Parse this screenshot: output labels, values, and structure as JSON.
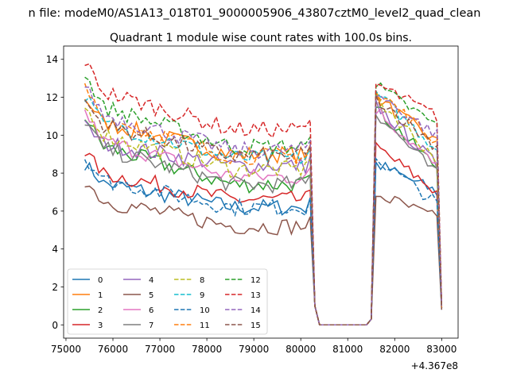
{
  "figure": {
    "suptitle": "n file: modeM0/AS1A13_018T01_9000005906_43807cztM0_level2_quad_clean",
    "title": "Quadrant 1 module wise count rates with 100.0s bins.",
    "offset_text": "+4.367e8"
  },
  "chart_data": {
    "type": "line",
    "title": "Quadrant 1 module wise count rates with 100.0s bins.",
    "xlabel": "",
    "ylabel": "",
    "x_offset": 436700000,
    "xlim": [
      74950,
      83350
    ],
    "ylim": [
      -0.7,
      14.7
    ],
    "xticks": [
      75000,
      76000,
      77000,
      78000,
      79000,
      80000,
      81000,
      82000,
      83000
    ],
    "yticks": [
      0,
      2,
      4,
      6,
      8,
      10,
      12,
      14
    ],
    "grid": false,
    "legend_position": "lower-left",
    "legend_columns": 4,
    "x_start": 75400,
    "x_step": 100,
    "gap": {
      "from": 80400,
      "to": 81400,
      "value": 0
    },
    "series": [
      {
        "name": "0",
        "color": "#1f77b4",
        "dash": "solid",
        "first": 8.5,
        "plateau": 6.2,
        "second_start": 8.5,
        "second_end": 7.0,
        "end_value": 0.8
      },
      {
        "name": "1",
        "color": "#ff7f0e",
        "dash": "solid",
        "first": 12.0,
        "plateau": 9.0,
        "second_start": 12.0,
        "second_end": 9.6,
        "end_value": 0.9
      },
      {
        "name": "2",
        "color": "#2ca02c",
        "dash": "solid",
        "first": 11.0,
        "plateau": 7.4,
        "second_start": 11.4,
        "second_end": 8.3,
        "end_value": 0.9
      },
      {
        "name": "3",
        "color": "#d62728",
        "dash": "solid",
        "first": 9.1,
        "plateau": 6.6,
        "second_start": 9.4,
        "second_end": 7.0,
        "end_value": 0.9
      },
      {
        "name": "4",
        "color": "#9467bd",
        "dash": "solid",
        "first": 10.5,
        "plateau": 8.4,
        "second_start": 11.6,
        "second_end": 8.4,
        "end_value": 0.9
      },
      {
        "name": "5",
        "color": "#8c564b",
        "dash": "solid",
        "first": 7.6,
        "plateau": 5.2,
        "second_start": 6.9,
        "second_end": 5.6,
        "end_value": 0.8
      },
      {
        "name": "6",
        "color": "#e377c2",
        "dash": "solid",
        "first": 11.2,
        "plateau": 7.8,
        "second_start": 11.4,
        "second_end": 8.3,
        "end_value": 0.9
      },
      {
        "name": "7",
        "color": "#7f7f7f",
        "dash": "solid",
        "first": 10.8,
        "plateau": 7.4,
        "second_start": 11.2,
        "second_end": 7.9,
        "end_value": 0.9
      },
      {
        "name": "8",
        "color": "#bcbd22",
        "dash": "dashed",
        "first": 11.5,
        "plateau": 8.2,
        "second_start": 12.0,
        "second_end": 8.7,
        "end_value": 0.9
      },
      {
        "name": "9",
        "color": "#17becf",
        "dash": "dashed",
        "first": 12.1,
        "plateau": 8.8,
        "second_start": 12.2,
        "second_end": 9.3,
        "end_value": 0.9
      },
      {
        "name": "10",
        "color": "#1f77b4",
        "dash": "dashed",
        "first": 8.8,
        "plateau": 6.2,
        "second_start": 8.8,
        "second_end": 6.4,
        "end_value": 0.9
      },
      {
        "name": "11",
        "color": "#ff7f0e",
        "dash": "dashed",
        "first": 12.5,
        "plateau": 8.9,
        "second_start": 12.4,
        "second_end": 9.6,
        "end_value": 0.9
      },
      {
        "name": "12",
        "color": "#2ca02c",
        "dash": "dashed",
        "first": 13.2,
        "plateau": 9.4,
        "second_start": 12.6,
        "second_end": 10.5,
        "end_value": 1.0
      },
      {
        "name": "13",
        "color": "#d62728",
        "dash": "dashed",
        "first": 13.9,
        "plateau": 10.3,
        "second_start": 12.7,
        "second_end": 11.0,
        "end_value": 1.1
      },
      {
        "name": "14",
        "color": "#9467bd",
        "dash": "dashed",
        "first": 12.6,
        "plateau": 9.2,
        "second_start": 12.2,
        "second_end": 10.0,
        "end_value": 1.0
      },
      {
        "name": "15",
        "color": "#8c564b",
        "dash": "dashed",
        "first": 11.8,
        "plateau": 8.9,
        "second_start": 12.0,
        "second_end": 9.4,
        "end_value": 0.9
      }
    ]
  }
}
